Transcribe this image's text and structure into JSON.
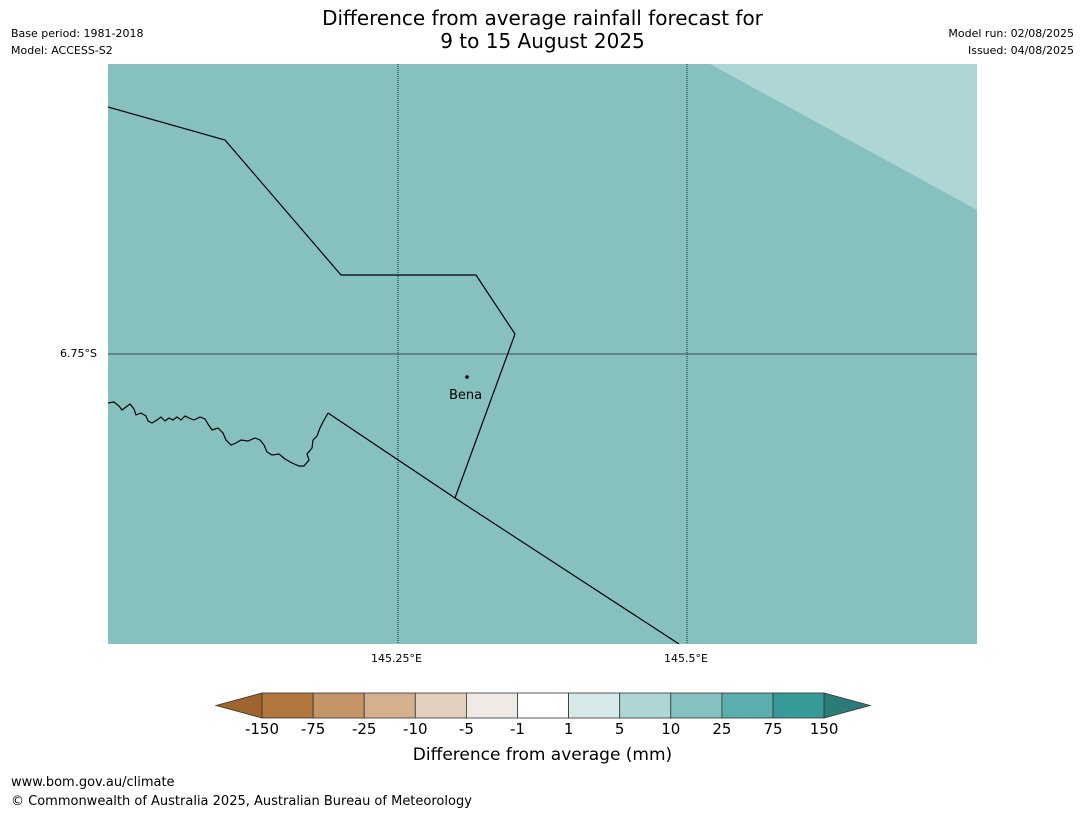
{
  "title": {
    "line1": "Difference from average rainfall forecast for",
    "line2": "9 to 15 August 2025"
  },
  "meta_left": {
    "base_period": "Base period: 1981-2018",
    "model": "Model: ACCESS-S2"
  },
  "meta_right": {
    "model_run": "Model run: 02/08/2025",
    "issued": "Issued: 04/08/2025"
  },
  "map": {
    "lat_label": "6.75°S",
    "lon_labels": [
      "145.25°E",
      "145.5°E"
    ],
    "town": {
      "name": "Bena"
    },
    "colors": {
      "main_fill": "#86c1bf",
      "light_fill": "#aed6d5",
      "boundary": "#000000",
      "grid": "#000000"
    }
  },
  "colorbar": {
    "ticks": [
      "-150",
      "-75",
      "-25",
      "-10",
      "-5",
      "-1",
      "1",
      "5",
      "10",
      "25",
      "75",
      "150"
    ],
    "colors": [
      "#a0652f",
      "#b2773c",
      "#c39566",
      "#d4b08f",
      "#e3cfbd",
      "#efeae5",
      "#ffffff",
      "#d7e9e8",
      "#aed6d5",
      "#86c1bf",
      "#5caeae",
      "#359a98",
      "#2b7b79"
    ],
    "label": "Difference from average (mm)"
  },
  "footer": {
    "url": "www.bom.gov.au/climate",
    "copyright": "© Commonwealth of Australia 2025, Australian Bureau of Meteorology"
  }
}
